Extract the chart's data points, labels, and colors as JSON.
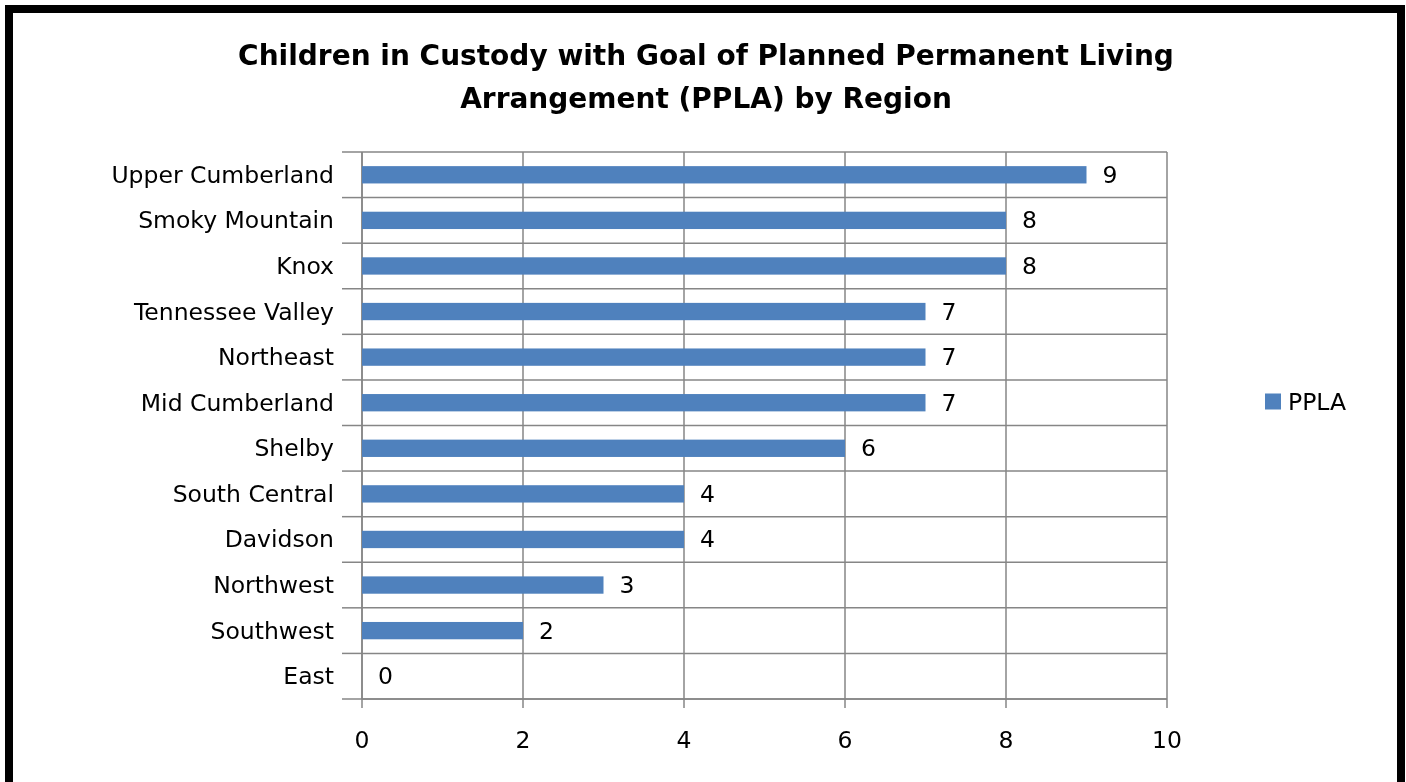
{
  "chart_data": {
    "type": "bar",
    "orientation": "horizontal",
    "title": "Children in Custody with Goal of Planned Permanent Living Arrangement (PPLA) by Region",
    "categories": [
      "Upper Cumberland",
      "Smoky Mountain",
      "Knox",
      "Tennessee Valley",
      "Northeast",
      "Mid Cumberland",
      "Shelby",
      "South Central",
      "Davidson",
      "Northwest",
      "Southwest",
      "East"
    ],
    "series": [
      {
        "name": "PPLA",
        "color": "#4f81bd",
        "values": [
          9,
          8,
          8,
          7,
          7,
          7,
          6,
          4,
          4,
          3,
          2,
          0
        ]
      }
    ],
    "xlim": [
      0,
      10
    ],
    "xticks": [
      0,
      2,
      4,
      6,
      8,
      10
    ],
    "grid": true,
    "legend": "right",
    "data_labels": true
  }
}
